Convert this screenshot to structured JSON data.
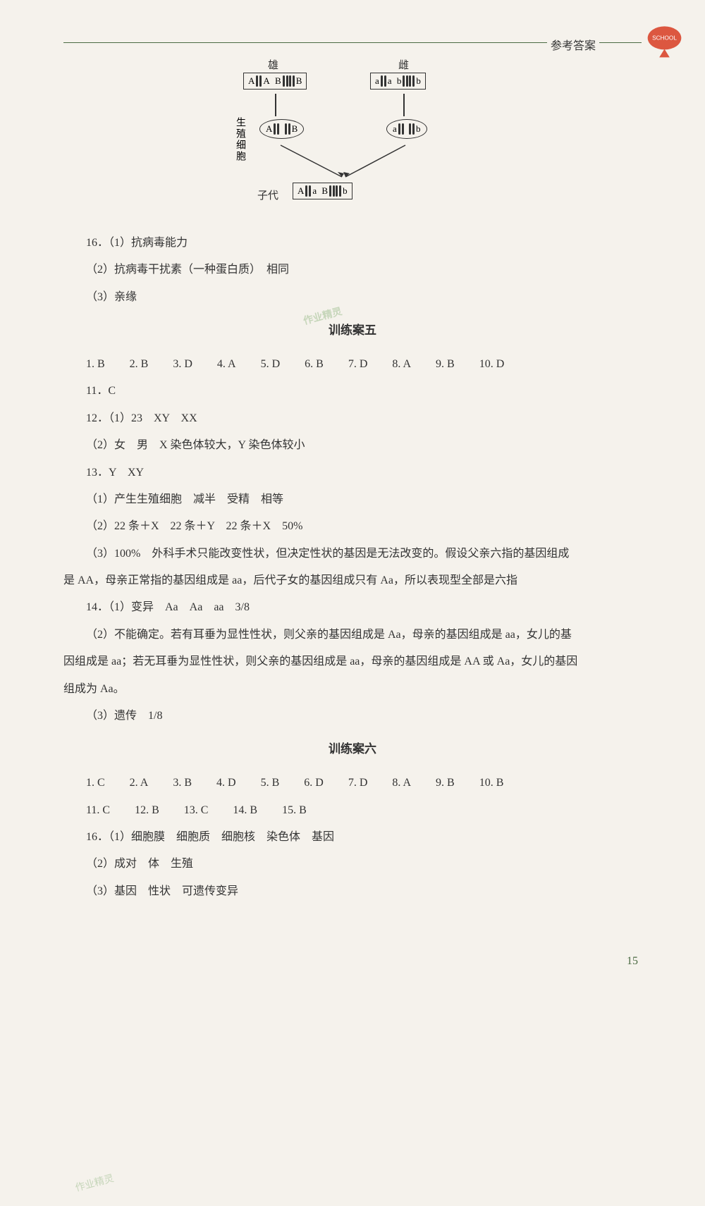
{
  "header": {
    "label": "参考答案",
    "logo_text": "SCHOOL"
  },
  "watermarks": {
    "w1": "作业精灵",
    "w2": "作业精灵"
  },
  "diagram": {
    "male": "雄",
    "female": "雌",
    "gamete_label": "生殖细胞",
    "offspring_label": "子代",
    "labels": {
      "A": "A",
      "B": "B",
      "a": "a",
      "b": "b"
    }
  },
  "q16": {
    "p1": "16．（1）抗病毒能力",
    "p2": "（2）抗病毒干扰素（一种蛋白质）　相同",
    "p3": "（3）亲缘"
  },
  "section5": {
    "title": "训练案五",
    "mc": [
      {
        "n": "1.",
        "a": "B"
      },
      {
        "n": "2.",
        "a": "B"
      },
      {
        "n": "3.",
        "a": "D"
      },
      {
        "n": "4.",
        "a": "A"
      },
      {
        "n": "5.",
        "a": "D"
      },
      {
        "n": "6.",
        "a": "B"
      },
      {
        "n": "7.",
        "a": "D"
      },
      {
        "n": "8.",
        "a": "A"
      },
      {
        "n": "9.",
        "a": "B"
      },
      {
        "n": "10.",
        "a": "D"
      }
    ],
    "mc2": "11．C",
    "q12_1": "12．（1）23　XY　XX",
    "q12_2": "（2）女　男　X 染色体较大，Y 染色体较小",
    "q13": "13．Y　XY",
    "q13_1": "（1）产生生殖细胞　减半　受精　相等",
    "q13_2": "（2）22 条＋X　22 条＋Y　22 条＋X　50%",
    "q13_3a": "（3）100%　外科手术只能改变性状，但决定性状的基因是无法改变的。假设父亲六指的基因组成",
    "q13_3b": "是 AA，母亲正常指的基因组成是 aa，后代子女的基因组成只有 Aa，所以表现型全部是六指",
    "q14_1": "14．（1）变异　Aa　Aa　aa　3/8",
    "q14_2a": "（2）不能确定。若有耳垂为显性性状，则父亲的基因组成是 Aa，母亲的基因组成是 aa，女儿的基",
    "q14_2b": "因组成是 aa；若无耳垂为显性性状，则父亲的基因组成是 aa，母亲的基因组成是 AA 或 Aa，女儿的基因",
    "q14_2c": "组成为 Aa。",
    "q14_3": "（3）遗传　1/8"
  },
  "section6": {
    "title": "训练案六",
    "mc": [
      {
        "n": "1.",
        "a": "C"
      },
      {
        "n": "2.",
        "a": "A"
      },
      {
        "n": "3.",
        "a": "B"
      },
      {
        "n": "4.",
        "a": "D"
      },
      {
        "n": "5.",
        "a": "B"
      },
      {
        "n": "6.",
        "a": "D"
      },
      {
        "n": "7.",
        "a": "D"
      },
      {
        "n": "8.",
        "a": "A"
      },
      {
        "n": "9.",
        "a": "B"
      },
      {
        "n": "10.",
        "a": "B"
      }
    ],
    "mc2": [
      {
        "n": "11.",
        "a": "C"
      },
      {
        "n": "12.",
        "a": "B"
      },
      {
        "n": "13.",
        "a": "C"
      },
      {
        "n": "14.",
        "a": "B"
      },
      {
        "n": "15.",
        "a": "B"
      }
    ],
    "q16_1": "16．（1）细胞膜　细胞质　细胞核　染色体　基因",
    "q16_2": "（2）成对　体　生殖",
    "q16_3": "（3）基因　性状　可遗传变异"
  },
  "page_number": "15"
}
